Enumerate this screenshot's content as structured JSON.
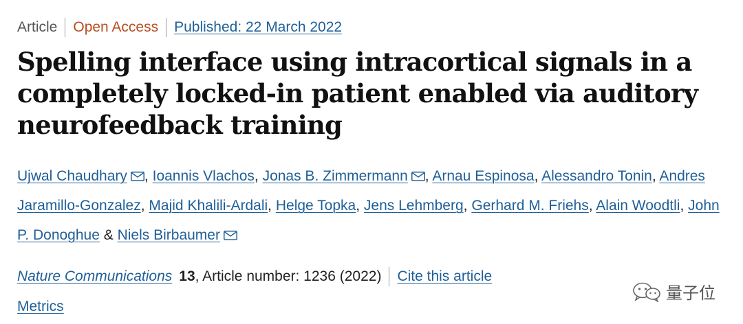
{
  "meta": {
    "type": "Article",
    "access": "Open Access",
    "published": "Published: 22 March 2022"
  },
  "title": "Spelling interface using intracortical signals in a completely locked-in patient enabled via auditory neurofeedback training",
  "authors": {
    "a1": "Ujwal Chaudhary",
    "a2": "Ioannis Vlachos",
    "a3": "Jonas B. Zimmermann",
    "a4": "Arnau Espinosa",
    "a5": "Alessandro Tonin",
    "a6": "Andres Jaramillo-Gonzalez",
    "a7": "Majid Khalili-Ardali",
    "a8": "Helge Topka",
    "a9": "Jens Lehmberg",
    "a10": "Gerhard M. Friehs",
    "a11": "Alain Woodtli",
    "a12": "John P. Donoghue",
    "a13": "Niels Birbaumer",
    "separator": ",",
    "ampersand": "&"
  },
  "journal": {
    "name": "Nature Communications",
    "volume": "13",
    "article_number": ", Article number: 1236 (2022)",
    "cite": "Cite this article"
  },
  "metrics": "Metrics",
  "watermark": {
    "text": "量子位",
    "icon": "wechat-icon"
  },
  "colors": {
    "link": "#1f5f97",
    "open_access": "#b84e1f",
    "text": "#222222"
  }
}
